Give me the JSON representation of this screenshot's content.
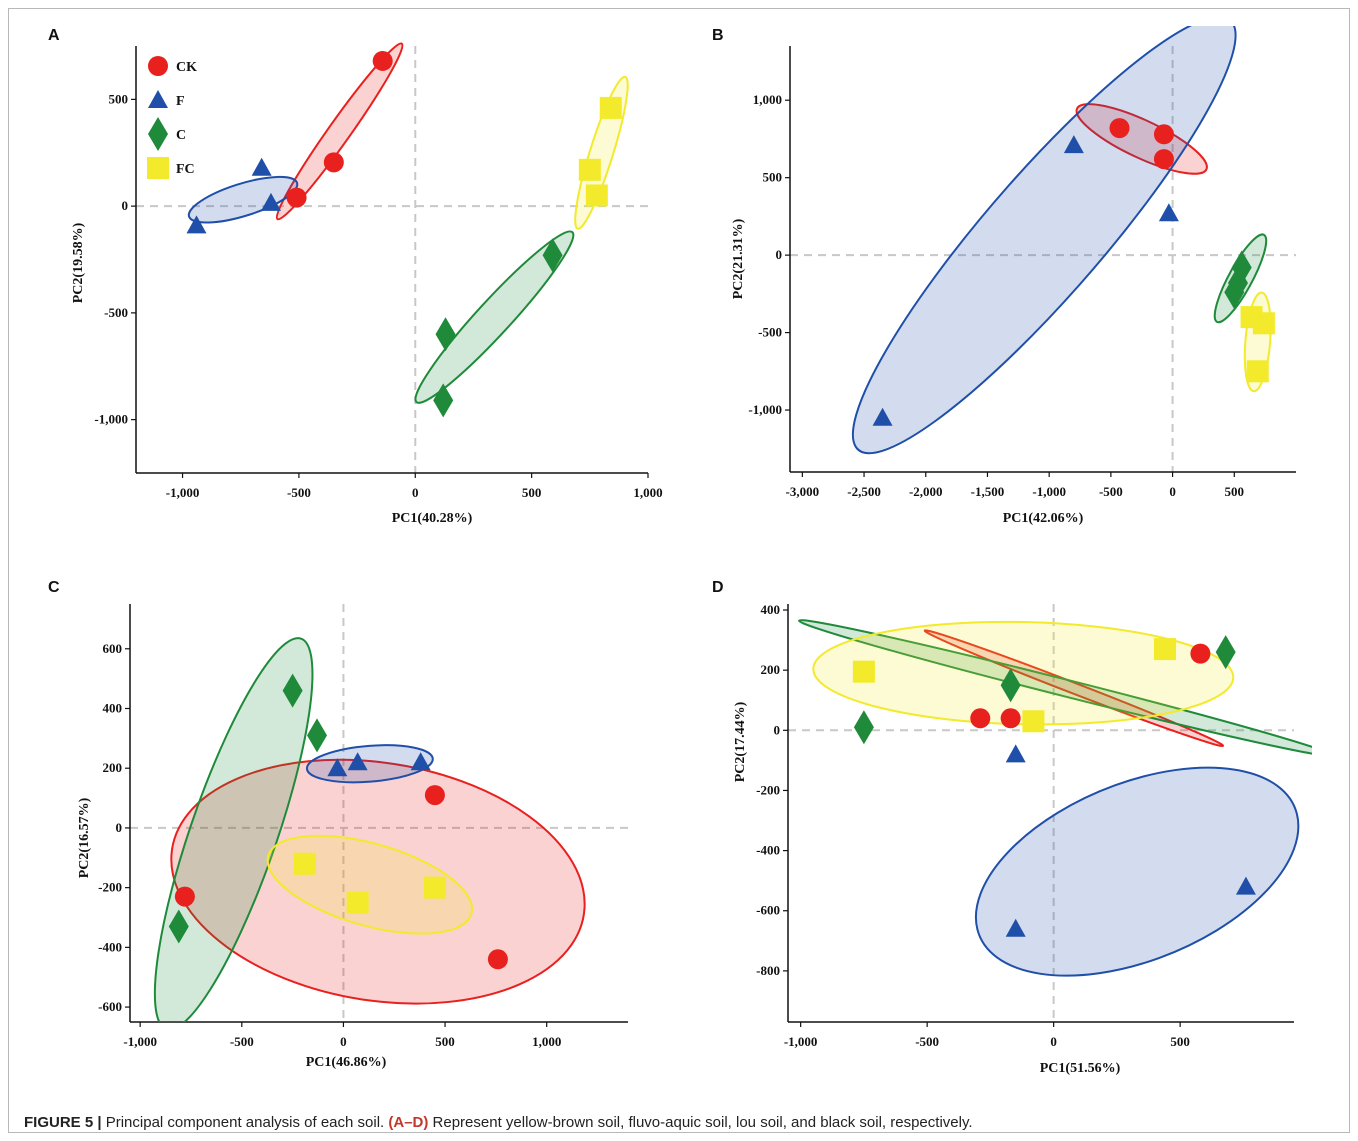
{
  "caption": {
    "label": "FIGURE 5 |",
    "text1": " Principal component analysis of each soil. ",
    "keys": "(A–D)",
    "text2": " Represent yellow-brown soil, fluvo-aquic soil, lou soil, and black soil, respectively."
  },
  "legend": [
    {
      "name": "CK",
      "shape": "circle",
      "color": "#e8201e"
    },
    {
      "name": "F",
      "shape": "triangle",
      "color": "#1f4fa8"
    },
    {
      "name": "C",
      "shape": "diamond",
      "color": "#1e8a3a"
    },
    {
      "name": "FC",
      "shape": "square",
      "color": "#f2ea2a"
    }
  ],
  "chart_data": [
    {
      "panel": "A",
      "type": "scatter",
      "xlabel": "PC1(40.28%)",
      "ylabel": "PC2(19.58%)",
      "xlim": [
        -1200,
        1000
      ],
      "ylim": [
        -1250,
        750
      ],
      "xticks": [
        {
          "v": -1000,
          "t": "-1,000"
        },
        {
          "v": -500,
          "t": "-500"
        },
        {
          "v": 0,
          "t": "0"
        },
        {
          "v": 500,
          "t": "500"
        },
        {
          "v": 1000,
          "t": "1,000"
        }
      ],
      "yticks": [
        {
          "v": 500,
          "t": "500"
        },
        {
          "v": 0,
          "t": "0"
        },
        {
          "v": -500,
          "t": "-500"
        },
        {
          "v": -1000,
          "t": "-1,000"
        }
      ],
      "show_legend": true,
      "series": [
        {
          "name": "CK",
          "points": [
            [
              -140,
              680
            ],
            [
              -350,
              205
            ],
            [
              -510,
              40
            ]
          ],
          "ellipse": {
            "cx": -325,
            "cy": 350,
            "rx": 490,
            "ry": 48,
            "angle": 57
          }
        },
        {
          "name": "F",
          "points": [
            [
              -660,
              180
            ],
            [
              -620,
              15
            ],
            [
              -940,
              -90
            ]
          ],
          "ellipse": {
            "cx": -740,
            "cy": 30,
            "rx": 245,
            "ry": 75,
            "angle": 19
          }
        },
        {
          "name": "C",
          "points": [
            [
              590,
              -230
            ],
            [
              130,
              -600
            ],
            [
              120,
              -910
            ]
          ],
          "ellipse": {
            "cx": 340,
            "cy": -520,
            "rx": 520,
            "ry": 75,
            "angle": 50
          }
        },
        {
          "name": "FC",
          "points": [
            [
              840,
              460
            ],
            [
              750,
              170
            ],
            [
              780,
              50
            ]
          ],
          "ellipse": {
            "cx": 800,
            "cy": 250,
            "rx": 370,
            "ry": 50,
            "angle": 74
          }
        }
      ]
    },
    {
      "panel": "B",
      "type": "scatter",
      "xlabel": "PC1(42.06%)",
      "ylabel": "PC2(21.31%)",
      "xlim": [
        -3100,
        1000
      ],
      "ylim": [
        -1400,
        1350
      ],
      "xticks": [
        {
          "v": -3000,
          "t": "-3,000"
        },
        {
          "v": -2500,
          "t": "-2,500"
        },
        {
          "v": -2000,
          "t": "-2,000"
        },
        {
          "v": -1500,
          "t": "-1,500"
        },
        {
          "v": -1000,
          "t": "-1,000"
        },
        {
          "v": -500,
          "t": "-500"
        },
        {
          "v": 0,
          "t": "0"
        },
        {
          "v": 500,
          "t": "500"
        }
      ],
      "yticks": [
        {
          "v": 1000,
          "t": "1,000"
        },
        {
          "v": 500,
          "t": "500"
        },
        {
          "v": 0,
          "t": "0"
        },
        {
          "v": -500,
          "t": "-500"
        },
        {
          "v": -1000,
          "t": "-1,000"
        }
      ],
      "show_legend": false,
      "series": [
        {
          "name": "CK",
          "points": [
            [
              -430,
              820
            ],
            [
              -70,
              780
            ],
            [
              -70,
              620
            ]
          ],
          "ellipse": {
            "cx": -250,
            "cy": 750,
            "rx": 560,
            "ry": 125,
            "angle": -20
          }
        },
        {
          "name": "F",
          "points": [
            [
              -800,
              710
            ],
            [
              -30,
              270
            ],
            [
              -2350,
              -1050
            ]
          ],
          "ellipse": {
            "cx": -1040,
            "cy": 130,
            "rx": 2050,
            "ry": 430,
            "angle": 42
          }
        },
        {
          "name": "C",
          "points": [
            [
              560,
              -80
            ],
            [
              530,
              -180
            ],
            [
              500,
              -240
            ]
          ],
          "ellipse": {
            "cx": 550,
            "cy": -150,
            "rx": 340,
            "ry": 90,
            "angle": 55
          }
        },
        {
          "name": "FC",
          "points": [
            [
              640,
              -400
            ],
            [
              740,
              -440
            ],
            [
              690,
              -750
            ]
          ],
          "ellipse": {
            "cx": 690,
            "cy": -560,
            "rx": 320,
            "ry": 100,
            "angle": 84
          }
        }
      ]
    },
    {
      "panel": "C",
      "type": "scatter",
      "xlabel": "PC1(46.86%)",
      "ylabel": "PC2(16.57%)",
      "xlim": [
        -1050,
        1400
      ],
      "ylim": [
        -650,
        750
      ],
      "xticks": [
        {
          "v": -1000,
          "t": "-1,000"
        },
        {
          "v": -500,
          "t": "-500"
        },
        {
          "v": 0,
          "t": "0"
        },
        {
          "v": 500,
          "t": "500"
        },
        {
          "v": 1000,
          "t": "1,000"
        }
      ],
      "yticks": [
        {
          "v": 600,
          "t": "600"
        },
        {
          "v": 400,
          "t": "400"
        },
        {
          "v": 200,
          "t": "200"
        },
        {
          "v": 0,
          "t": "0"
        },
        {
          "v": -200,
          "t": "-200"
        },
        {
          "v": -400,
          "t": "-400"
        },
        {
          "v": -600,
          "t": "-600"
        }
      ],
      "show_legend": false,
      "series": [
        {
          "name": "CK",
          "points": [
            [
              450,
              110
            ],
            [
              -780,
              -230
            ],
            [
              760,
              -440
            ]
          ],
          "ellipse": {
            "cx": 170,
            "cy": -180,
            "rx": 1020,
            "ry": 400,
            "angle": -5
          }
        },
        {
          "name": "F",
          "points": [
            [
              -30,
              200
            ],
            [
              70,
              220
            ],
            [
              380,
              220
            ]
          ],
          "ellipse": {
            "cx": 130,
            "cy": 215,
            "rx": 310,
            "ry": 60,
            "angle": 3
          }
        },
        {
          "name": "C",
          "points": [
            [
              -250,
              460
            ],
            [
              -130,
              310
            ],
            [
              -810,
              -330
            ]
          ],
          "ellipse": {
            "cx": -540,
            "cy": -20,
            "rx": 735,
            "ry": 200,
            "angle": 62
          }
        },
        {
          "name": "FC",
          "points": [
            [
              -190,
              -120
            ],
            [
              70,
              -250
            ],
            [
              450,
              -200
            ]
          ],
          "ellipse": {
            "cx": 130,
            "cy": -190,
            "rx": 510,
            "ry": 140,
            "angle": -10
          }
        }
      ]
    },
    {
      "panel": "D",
      "type": "scatter",
      "xlabel": "PC1(51.56%)",
      "ylabel": "PC2(17.44%)",
      "xlim": [
        -1050,
        950
      ],
      "ylim": [
        -970,
        420
      ],
      "xticks": [
        {
          "v": -1000,
          "t": "-1,000"
        },
        {
          "v": -500,
          "t": "-500"
        },
        {
          "v": 0,
          "t": "0"
        },
        {
          "v": 500,
          "t": "500"
        }
      ],
      "yticks": [
        {
          "v": 400,
          "t": "400"
        },
        {
          "v": 200,
          "t": "200"
        },
        {
          "v": 0,
          "t": "0"
        },
        {
          "v": -200,
          "t": "-200"
        },
        {
          "v": -400,
          "t": "-400"
        },
        {
          "v": -600,
          "t": "-600"
        },
        {
          "v": -800,
          "t": "-800"
        }
      ],
      "show_legend": false,
      "series": [
        {
          "name": "CK",
          "points": [
            [
              -290,
              40
            ],
            [
              -170,
              40
            ],
            [
              580,
              255
            ]
          ],
          "ellipse": {
            "cx": 80,
            "cy": 140,
            "rx": 620,
            "ry": 18,
            "angle": -18
          }
        },
        {
          "name": "F",
          "points": [
            [
              -150,
              -80
            ],
            [
              -150,
              -660
            ],
            [
              760,
              -520
            ]
          ],
          "ellipse": {
            "cx": 330,
            "cy": -470,
            "rx": 660,
            "ry": 300,
            "angle": 17
          }
        },
        {
          "name": "C",
          "points": [
            [
              -750,
              10
            ],
            [
              -170,
              150
            ],
            [
              680,
              260
            ]
          ],
          "ellipse": {
            "cx": 50,
            "cy": 140,
            "rx": 1080,
            "ry": 28,
            "angle": -12
          }
        },
        {
          "name": "FC",
          "points": [
            [
              -750,
              195
            ],
            [
              440,
              270
            ],
            [
              -80,
              30
            ]
          ],
          "ellipse": {
            "cx": -120,
            "cy": 190,
            "rx": 830,
            "ry": 170,
            "angle": -1
          }
        }
      ]
    }
  ]
}
